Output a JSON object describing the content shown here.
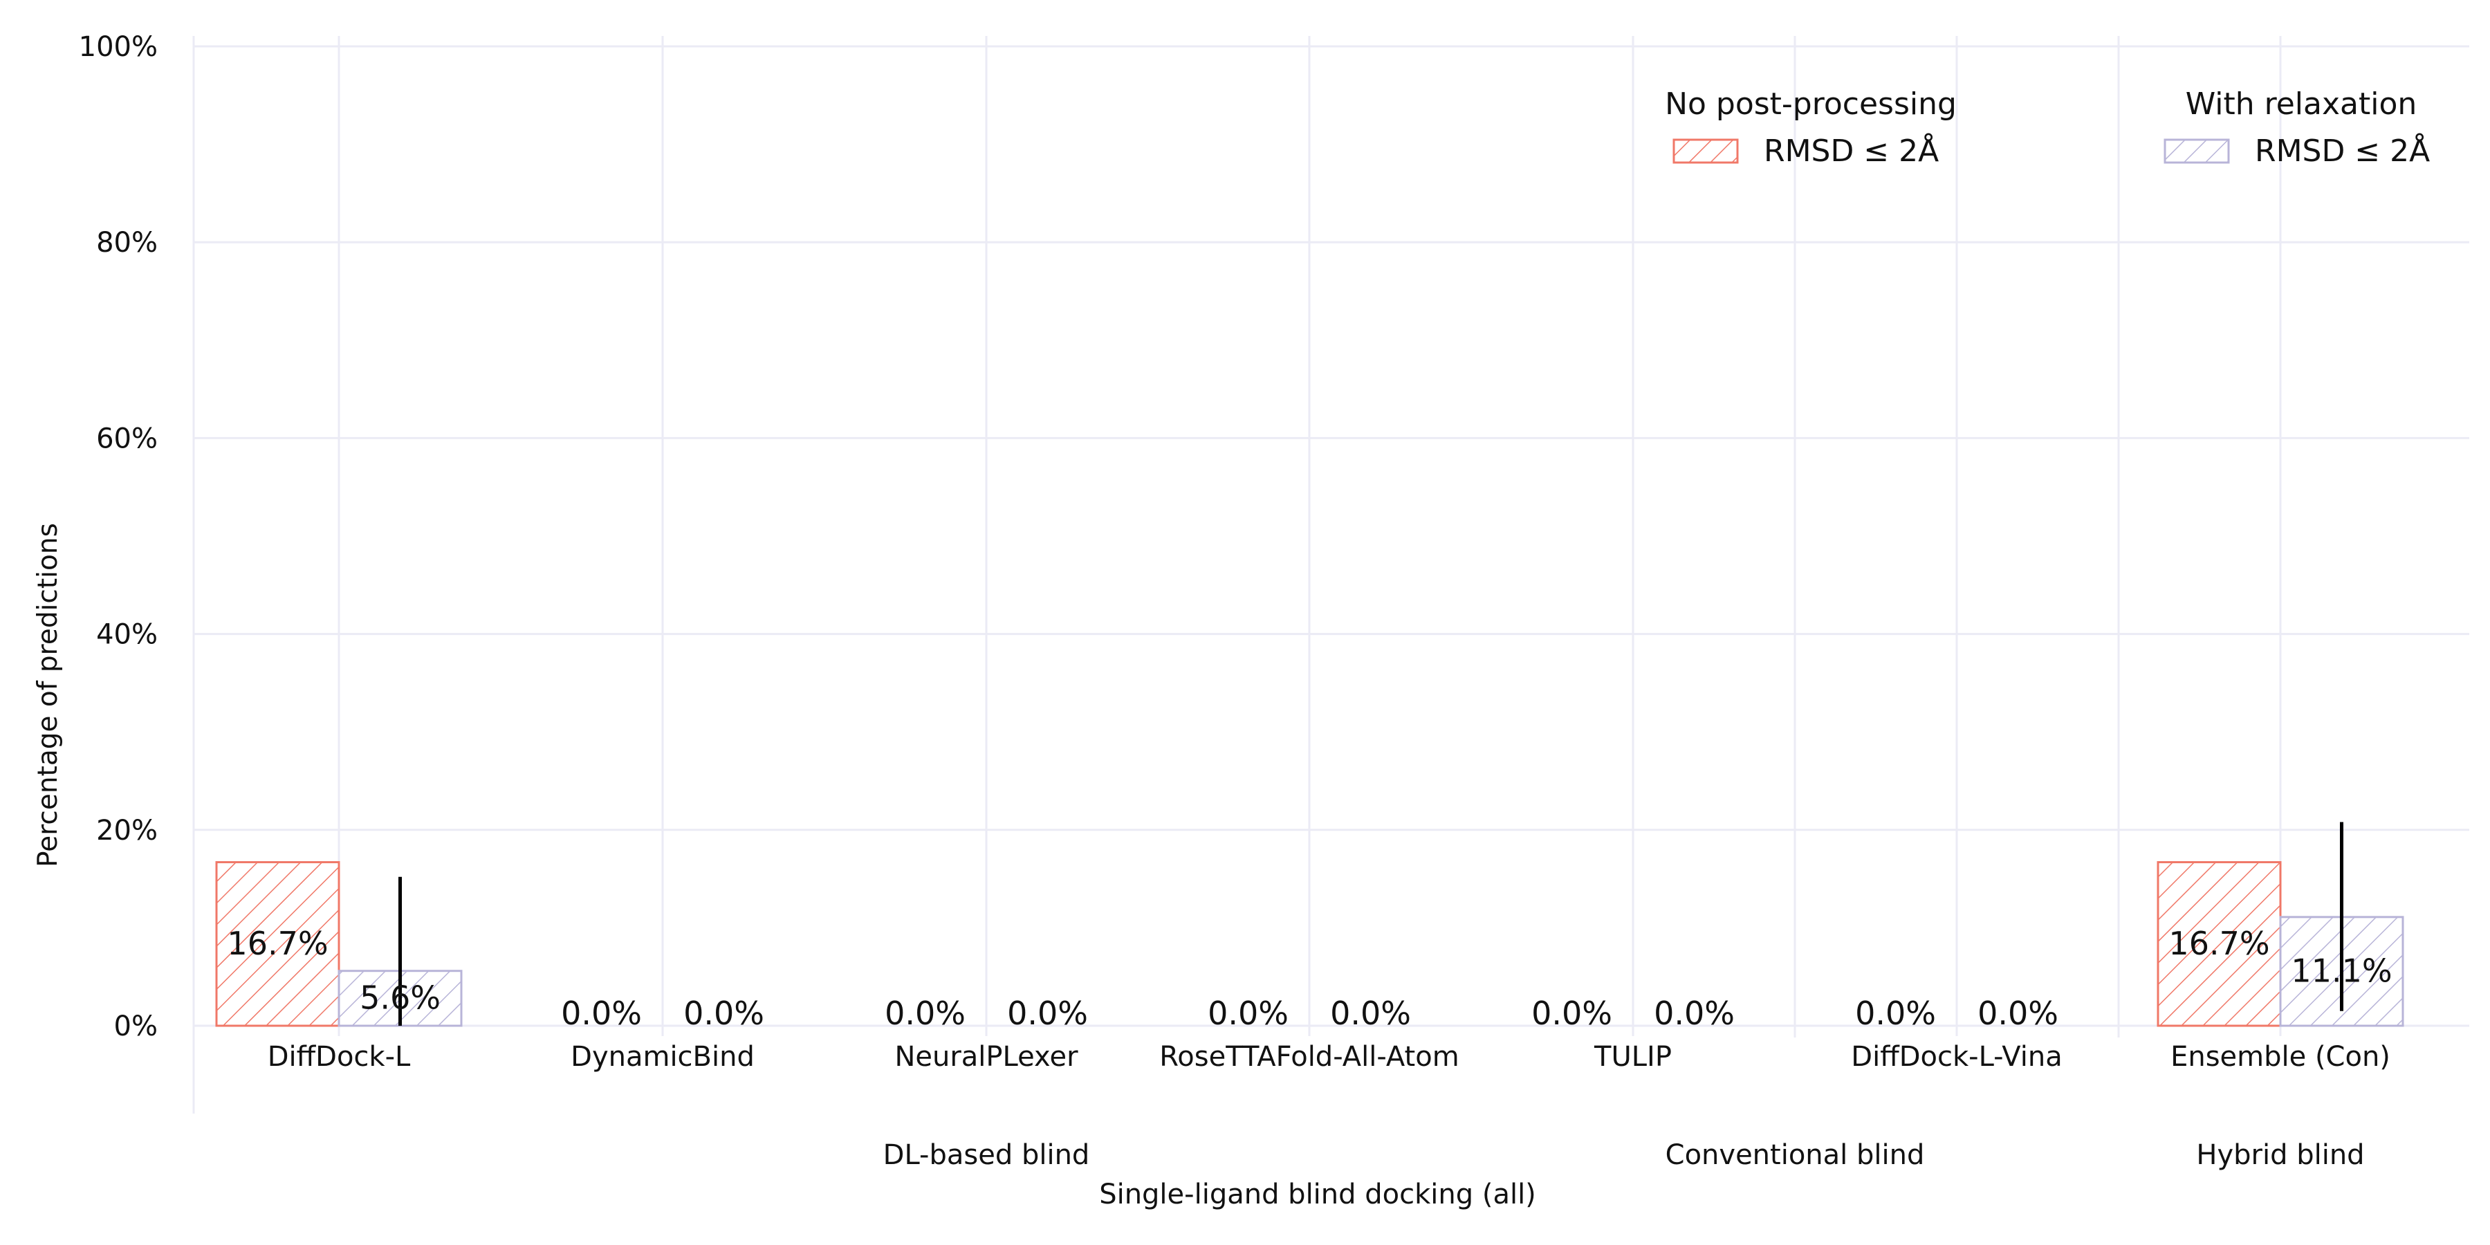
{
  "chart_data": {
    "type": "bar",
    "title": "",
    "xlabel": "Single-ligand blind docking (all)",
    "ylabel": "Percentage of predictions",
    "ylim": [
      0,
      100
    ],
    "yticks": [
      "0%",
      "20%",
      "40%",
      "60%",
      "80%",
      "100%"
    ],
    "grid": true,
    "categories": [
      "DiffDock-L",
      "DynamicBind",
      "NeuralPLexer",
      "RoseTTAFold-All-Atom",
      "TULIP",
      "DiffDock-L-Vina",
      "Ensemble (Con)"
    ],
    "groups": [
      {
        "label": "DL-based blind",
        "members": [
          "DiffDock-L",
          "DynamicBind",
          "NeuralPLexer",
          "RoseTTAFold-All-Atom",
          "TULIP"
        ]
      },
      {
        "label": "Conventional blind",
        "members": [
          "DiffDock-L-Vina"
        ]
      },
      {
        "label": "Hybrid blind",
        "members": [
          "Ensemble (Con)"
        ]
      }
    ],
    "series": [
      {
        "name": "RMSD ≤ 2Å",
        "legend_title": "No post-processing",
        "color": "#f07868",
        "values": [
          16.7,
          0.0,
          0.0,
          0.0,
          0.0,
          0.0,
          16.7
        ],
        "labels": [
          "16.7%",
          "0.0%",
          "0.0%",
          "0.0%",
          "0.0%",
          "0.0%",
          "16.7%"
        ],
        "error_upper": [
          null,
          null,
          null,
          null,
          null,
          null,
          null
        ],
        "error_lower": [
          null,
          null,
          null,
          null,
          null,
          null,
          null
        ]
      },
      {
        "name": "RMSD ≤ 2Å",
        "legend_title": "With relaxation",
        "color": "#b8b4d8",
        "values": [
          5.6,
          0.0,
          0.0,
          0.0,
          0.0,
          0.0,
          11.1
        ],
        "labels": [
          "5.6%",
          "0.0%",
          "0.0%",
          "0.0%",
          "0.0%",
          "0.0%",
          "11.1%"
        ],
        "error_upper": [
          15.2,
          null,
          null,
          null,
          null,
          null,
          20.8
        ],
        "error_lower": [
          0.0,
          null,
          null,
          null,
          null,
          null,
          1.5
        ]
      }
    ],
    "legend_position": "top-right"
  }
}
